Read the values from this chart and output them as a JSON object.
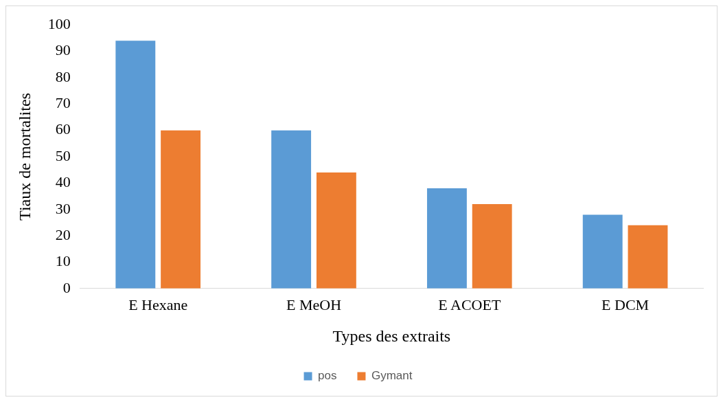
{
  "chart_data": {
    "type": "bar",
    "xlabel": "Types des extraits",
    "ylabel": "Tiaux de mortalites",
    "categories": [
      "E Hexane",
      "E MeOH",
      "E ACOET",
      "E DCM"
    ],
    "series": [
      {
        "name": "pos",
        "color": "#5b9bd5",
        "values": [
          94,
          60,
          38,
          28
        ]
      },
      {
        "name": "Gymant",
        "color": "#ed7d31",
        "values": [
          60,
          44,
          32,
          24
        ]
      }
    ],
    "ylim": [
      0,
      100
    ],
    "yticks": [
      0,
      10,
      20,
      30,
      40,
      50,
      60,
      70,
      80,
      90,
      100
    ],
    "grid": false,
    "legend": "bottom"
  }
}
